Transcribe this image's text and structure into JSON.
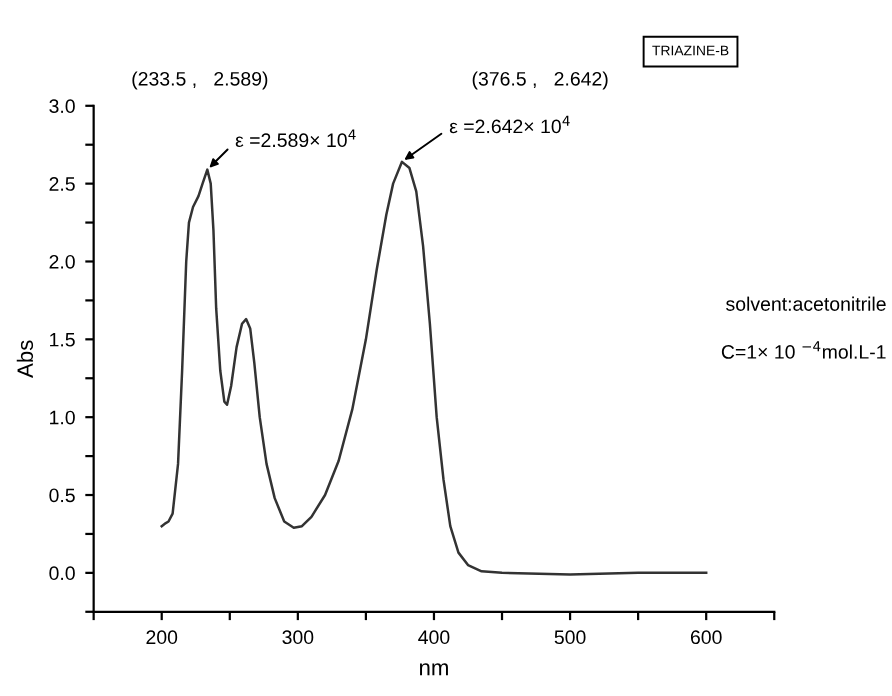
{
  "chart_data": {
    "type": "line",
    "xlabel": "nm",
    "ylabel": "Abs",
    "xlim": [
      150,
      650
    ],
    "ylim": [
      -0.25,
      3.0
    ],
    "xticks": [
      {
        "value": 150,
        "label": null
      },
      200,
      {
        "value": 250,
        "label": null
      },
      300,
      {
        "value": 350,
        "label": null
      },
      400,
      {
        "value": 450,
        "label": null
      },
      500,
      {
        "value": 550,
        "label": null
      },
      600,
      {
        "value": 650,
        "label": null
      }
    ],
    "yticks": [
      {
        "value": -0.25,
        "label": null
      },
      {
        "value": 0,
        "label": "0.0"
      },
      {
        "value": 0.25,
        "label": null
      },
      0.5,
      {
        "value": 0.75,
        "label": null
      },
      {
        "value": 1,
        "label": "1.0"
      },
      {
        "value": 1.25,
        "label": null
      },
      1.5,
      {
        "value": 1.75,
        "label": null
      },
      {
        "value": 2,
        "label": "2.0"
      },
      {
        "value": 2.25,
        "label": null
      },
      2.5,
      {
        "value": 2.75,
        "label": null
      },
      {
        "value": 3,
        "label": "3.0"
      }
    ],
    "grid": false,
    "marker": "none",
    "line_style": "solid",
    "series": [
      {
        "color": "#333333",
        "x": [
          200,
          203,
          205,
          208,
          212,
          215,
          218,
          220,
          223,
          227,
          230,
          233.5,
          236,
          238,
          240,
          243,
          246,
          248,
          251,
          255,
          259,
          262,
          265,
          268,
          272,
          277,
          283,
          290,
          297,
          303,
          310,
          320,
          330,
          340,
          350,
          358,
          365,
          370,
          376.5,
          382,
          387,
          392,
          397,
          402,
          407,
          412,
          418,
          425,
          435,
          450,
          500,
          550,
          600
        ],
        "values": [
          0.3,
          0.32,
          0.33,
          0.38,
          0.7,
          1.3,
          2.0,
          2.25,
          2.35,
          2.42,
          2.5,
          2.59,
          2.5,
          2.2,
          1.7,
          1.3,
          1.1,
          1.08,
          1.2,
          1.45,
          1.6,
          1.63,
          1.57,
          1.35,
          1.0,
          0.7,
          0.48,
          0.33,
          0.29,
          0.3,
          0.36,
          0.5,
          0.72,
          1.05,
          1.5,
          1.95,
          2.3,
          2.5,
          2.64,
          2.6,
          2.45,
          2.1,
          1.6,
          1.0,
          0.6,
          0.3,
          0.13,
          0.05,
          0.01,
          0.0,
          -0.01,
          0.0,
          0.0
        ]
      }
    ],
    "annotations": [
      "(233.5 ,   2.589)",
      {
        "text": "ε =2.589× 10$^{4}$",
        "x": 233.5,
        "y": 2.589
      },
      "(376.5 ,   2.642)",
      {
        "text": "ε =2.642× 10$^{4}$",
        "x": 376.5,
        "y": 2.642
      },
      "TRIAZINE-B",
      "solvent:acetonitrile",
      "C=1× 10 $^{−4}$mol.L-1"
    ]
  }
}
